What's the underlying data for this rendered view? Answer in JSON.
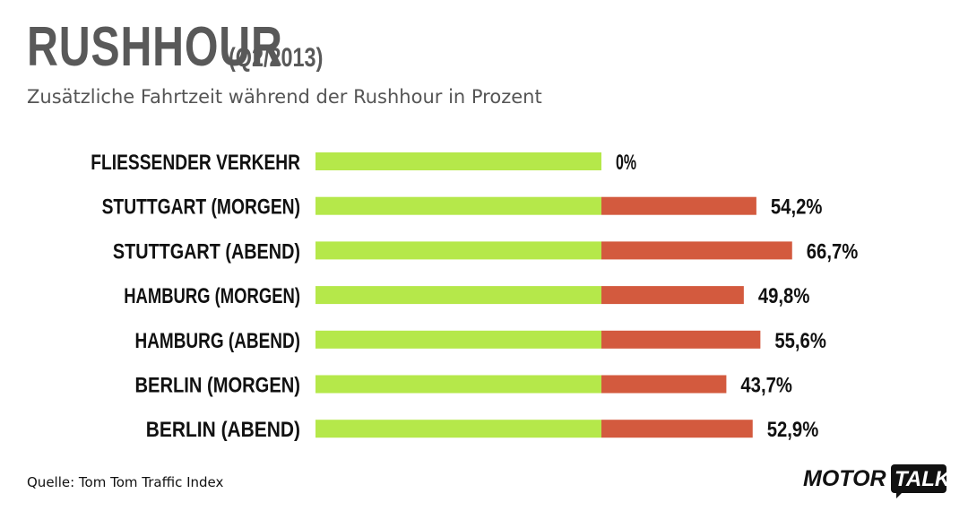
{
  "header": {
    "title": "RUSHHOUR",
    "period": "(Q2/2013)",
    "subtitle": "Zusätzliche Fahrtzeit während der Rushhour in Prozent"
  },
  "footer": {
    "source": "Quelle: Tom Tom Traffic Index",
    "logo_left": "MOTOR",
    "logo_right": "TALK"
  },
  "colors": {
    "base_bar": "#b5e84a",
    "extra_bar": "#d35a3e"
  },
  "chart_data": {
    "type": "bar",
    "orientation": "horizontal",
    "stacked": true,
    "title": "RUSHHOUR",
    "subtitle": "Zusätzliche Fahrtzeit während der Rushhour in Prozent",
    "categories": [
      "FLIESSENDER VERKEHR",
      "STUTTGART (MORGEN)",
      "STUTTGART (ABEND)",
      "HAMBURG (MORGEN)",
      "HAMBURG (ABEND)",
      "BERLIN (MORGEN)",
      "BERLIN (ABEND)"
    ],
    "series": [
      {
        "values": [
          100,
          100,
          100,
          100,
          100,
          100,
          100
        ],
        "color": "#b5e84a"
      },
      {
        "values": [
          0,
          54.2,
          66.7,
          49.8,
          55.6,
          43.7,
          52.9
        ],
        "color": "#d35a3e"
      }
    ],
    "value_labels": [
      "0%",
      "54,2%",
      "66,7%",
      "49,8%",
      "55,6%",
      "43,7%",
      "52,9%"
    ],
    "grid": false,
    "legend": "none"
  }
}
